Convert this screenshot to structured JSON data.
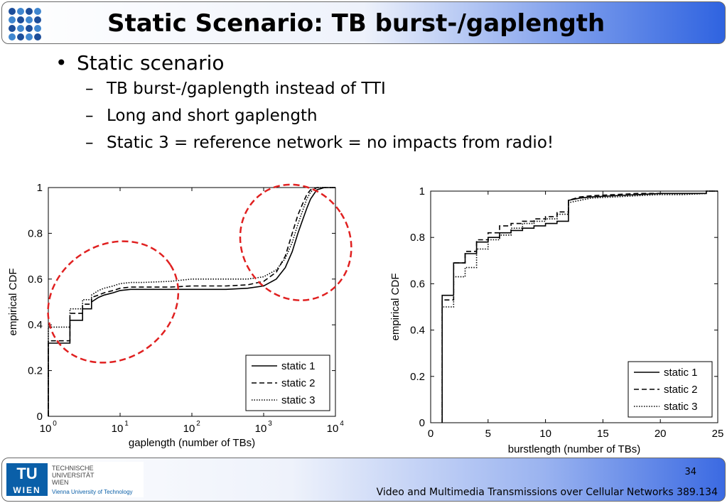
{
  "header": {
    "title": "Static Scenario: TB burst-/gaplength"
  },
  "bullets": {
    "main": "Static scenario",
    "subs": [
      "TB burst-/gaplength instead of TTI",
      "Long and short gaplength",
      "Static 3 = reference network = no impacts from radio!"
    ]
  },
  "chart_data": [
    {
      "type": "line",
      "xscale": "log",
      "xlabel": "gaplength (number of TBs)",
      "ylabel": "empirical CDF",
      "xlim": [
        1,
        10000
      ],
      "ylim": [
        0,
        1
      ],
      "xticks": [
        {
          "base": "10",
          "exp": "0",
          "v": 1
        },
        {
          "base": "10",
          "exp": "1",
          "v": 10
        },
        {
          "base": "10",
          "exp": "2",
          "v": 100
        },
        {
          "base": "10",
          "exp": "3",
          "v": 1000
        },
        {
          "base": "10",
          "exp": "4",
          "v": 10000
        }
      ],
      "yticks": [
        "0",
        "0.2",
        "0.4",
        "0.6",
        "0.8",
        "1"
      ],
      "legend_position": "bottom-right",
      "series": [
        {
          "name": "static 1",
          "style": "solid",
          "x": [
            1,
            1,
            2,
            2,
            3,
            3,
            4,
            4,
            5,
            6,
            8,
            10,
            14,
            20,
            50,
            100,
            300,
            600,
            1000,
            1500,
            2000,
            2500,
            3000,
            3500,
            4000,
            4500,
            5500,
            7000,
            10000
          ],
          "y": [
            0,
            0.32,
            0.32,
            0.42,
            0.42,
            0.47,
            0.47,
            0.5,
            0.52,
            0.53,
            0.54,
            0.55,
            0.555,
            0.555,
            0.555,
            0.555,
            0.555,
            0.56,
            0.57,
            0.6,
            0.65,
            0.72,
            0.8,
            0.86,
            0.91,
            0.95,
            0.99,
            1.0,
            1.0
          ]
        },
        {
          "name": "static 2",
          "style": "dashed",
          "x": [
            1,
            1,
            2,
            2,
            3,
            3,
            4,
            4,
            5,
            6,
            8,
            10,
            14,
            20,
            50,
            100,
            300,
            600,
            1000,
            1500,
            2000,
            2500,
            3000,
            3500,
            4000,
            4500,
            5500,
            7000,
            10000
          ],
          "y": [
            0,
            0.33,
            0.33,
            0.45,
            0.45,
            0.49,
            0.49,
            0.52,
            0.53,
            0.54,
            0.55,
            0.56,
            0.565,
            0.565,
            0.565,
            0.57,
            0.57,
            0.575,
            0.59,
            0.63,
            0.7,
            0.8,
            0.88,
            0.93,
            0.97,
            0.99,
            1.0,
            1.0,
            1.0
          ]
        },
        {
          "name": "static 3",
          "style": "dotted",
          "x": [
            1,
            1,
            2,
            2,
            3,
            3,
            4,
            4,
            5,
            6,
            8,
            10,
            14,
            20,
            50,
            100,
            300,
            600,
            1000,
            1500,
            2000,
            2500,
            3000,
            3500,
            4000,
            4500,
            5500,
            7000,
            10000
          ],
          "y": [
            0,
            0.39,
            0.39,
            0.47,
            0.47,
            0.51,
            0.51,
            0.53,
            0.55,
            0.56,
            0.57,
            0.58,
            0.585,
            0.585,
            0.59,
            0.6,
            0.6,
            0.6,
            0.61,
            0.64,
            0.69,
            0.76,
            0.84,
            0.9,
            0.95,
            0.98,
            1.0,
            1.0,
            1.0
          ]
        }
      ],
      "highlights": [
        {
          "cx": 8,
          "cy": 0.5,
          "rx_decades": 0.95,
          "ry": 0.25
        },
        {
          "cx": 2800,
          "cy": 0.76,
          "rx_decades": 0.75,
          "ry": 0.26
        }
      ],
      "highlight_color": "#e02020"
    },
    {
      "type": "line",
      "xlabel": "burstlength (number of TBs)",
      "ylabel": "empirical CDF",
      "xlim": [
        0,
        25
      ],
      "ylim": [
        0,
        1
      ],
      "xticks": [
        "0",
        "5",
        "10",
        "15",
        "20",
        "25"
      ],
      "yticks": [
        "0",
        "0.2",
        "0.4",
        "0.6",
        "0.8",
        "1"
      ],
      "legend_position": "bottom-right",
      "series": [
        {
          "name": "static 1",
          "style": "solid",
          "x": [
            1,
            1,
            2,
            2,
            3,
            3,
            4,
            4,
            5,
            5,
            6,
            6,
            7,
            7,
            8,
            8,
            9,
            9,
            10,
            10,
            11,
            11,
            12,
            12,
            13,
            14,
            16,
            18,
            20,
            22,
            24,
            24,
            25
          ],
          "y": [
            0,
            0.55,
            0.55,
            0.69,
            0.69,
            0.73,
            0.73,
            0.78,
            0.78,
            0.8,
            0.8,
            0.82,
            0.82,
            0.83,
            0.83,
            0.84,
            0.84,
            0.85,
            0.85,
            0.86,
            0.86,
            0.87,
            0.87,
            0.96,
            0.97,
            0.975,
            0.98,
            0.985,
            0.99,
            0.99,
            0.99,
            1.0,
            1.0
          ]
        },
        {
          "name": "static 2",
          "style": "dashed",
          "x": [
            1,
            1,
            2,
            2,
            3,
            3,
            4,
            4,
            5,
            5,
            6,
            6,
            7,
            7,
            8,
            8,
            9,
            9,
            10,
            10,
            11,
            11,
            12,
            12,
            13,
            14,
            16,
            18,
            20,
            22,
            24,
            24,
            25
          ],
          "y": [
            0,
            0.53,
            0.53,
            0.69,
            0.69,
            0.74,
            0.74,
            0.79,
            0.79,
            0.82,
            0.82,
            0.85,
            0.85,
            0.86,
            0.86,
            0.87,
            0.87,
            0.88,
            0.88,
            0.89,
            0.89,
            0.91,
            0.91,
            0.96,
            0.975,
            0.98,
            0.985,
            0.99,
            0.99,
            0.99,
            0.99,
            1.0,
            1.0
          ]
        },
        {
          "name": "static 3",
          "style": "dotted",
          "x": [
            1,
            1,
            2,
            2,
            3,
            3,
            4,
            4,
            5,
            5,
            6,
            6,
            7,
            7,
            8,
            8,
            9,
            9,
            10,
            10,
            11,
            11,
            12,
            12,
            13,
            14,
            16,
            18,
            20,
            22,
            24,
            24,
            25
          ],
          "y": [
            0,
            0.5,
            0.5,
            0.63,
            0.63,
            0.67,
            0.67,
            0.75,
            0.75,
            0.79,
            0.79,
            0.81,
            0.81,
            0.84,
            0.84,
            0.86,
            0.86,
            0.87,
            0.87,
            0.88,
            0.88,
            0.9,
            0.9,
            0.95,
            0.96,
            0.97,
            0.975,
            0.98,
            0.985,
            0.985,
            0.99,
            1.0,
            1.0
          ]
        }
      ]
    }
  ],
  "footer": {
    "page": "34",
    "text": "Video and Multimedia Transmissions over Cellular Networks 389.134",
    "logo": {
      "letters_top": "TU",
      "letters_bottom": "WIEN",
      "line1": "TECHNISCHE",
      "line2": "UNIVERSITÄT",
      "line3": "WIEN",
      "line4": "Vienna University of Technology"
    }
  }
}
